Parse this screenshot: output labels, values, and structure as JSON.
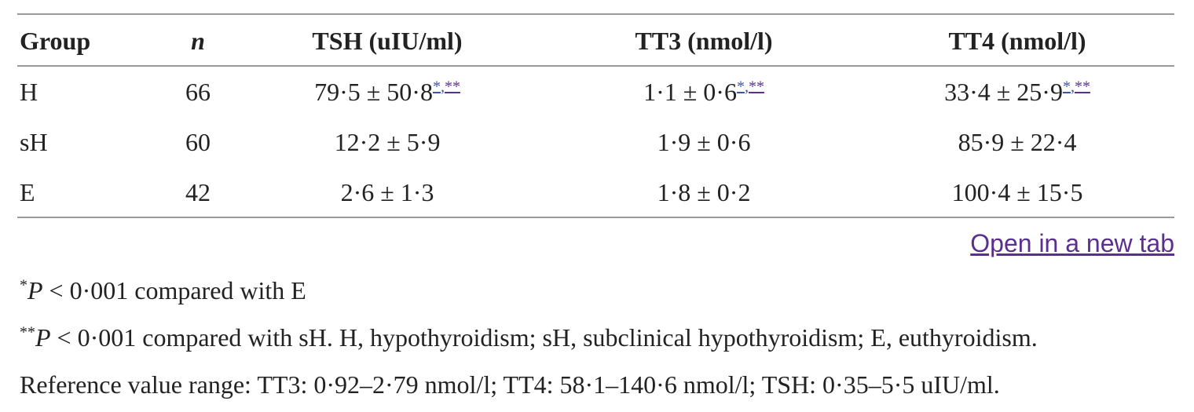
{
  "table": {
    "header": [
      "Group",
      "n",
      "TSH (uIU/ml)",
      "TT3 (nmol/l)",
      "TT4 (nmol/l)"
    ],
    "ref_separator": ",",
    "rows": [
      [
        {
          "text": "H"
        },
        {
          "text": "66"
        },
        {
          "text": "79·5 ± 50·8",
          "refs": [
            "*",
            "**"
          ]
        },
        {
          "text": "1·1 ± 0·6",
          "refs": [
            "*",
            "**"
          ]
        },
        {
          "text": "33·4 ± 25·9",
          "refs": [
            "*",
            "**"
          ]
        }
      ],
      [
        {
          "text": "sH"
        },
        {
          "text": "60"
        },
        {
          "text": "12·2 ± 5·9"
        },
        {
          "text": "1·9 ± 0·6"
        },
        {
          "text": "85·9 ± 22·4"
        }
      ],
      [
        {
          "text": "E"
        },
        {
          "text": "42"
        },
        {
          "text": "2·6 ± 1·3"
        },
        {
          "text": "1·8 ± 0·2"
        },
        {
          "text": "100·4 ± 15·5"
        }
      ]
    ]
  },
  "open_link": "Open in a new tab",
  "footnotes": [
    {
      "mark": "*",
      "italic": "P",
      "text": " < 0·001 compared with E"
    },
    {
      "mark": "**",
      "italic": "P",
      "text": " < 0·001 compared with sH. H, hypothyroidism; sH, subclinical hypothyroidism; E, euthyroidism."
    },
    {
      "text": "Reference value range: TT3: 0·92–2·79 nmol/l; TT4: 58·1–140·6 nmol/l; TSH: 0·35–5·5 uIU/ml."
    }
  ]
}
